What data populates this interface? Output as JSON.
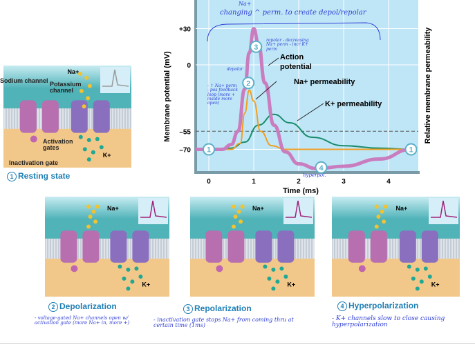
{
  "chart_data": {
    "type": "line",
    "xlabel": "Time (ms)",
    "ylabel": "Membrane potential (mV)",
    "ylabel_right": "Relative membrane permeability",
    "x_ticks": [
      "0",
      "1",
      "2",
      "3",
      "4"
    ],
    "y_ticks": [
      "+30",
      "0",
      "–55",
      "–70"
    ],
    "xlim": [
      -0.3,
      4.6
    ],
    "ylim": [
      -90,
      45
    ],
    "threshold_mV": -55,
    "grid": true,
    "series": [
      {
        "name": "Action potential",
        "color": "#c97dbf",
        "x": [
          -0.3,
          0.3,
          0.5,
          0.65,
          0.8,
          0.9,
          1.0,
          1.1,
          1.25,
          1.45,
          1.7,
          2.0,
          2.4,
          3.0,
          3.8,
          4.5
        ],
        "y": [
          -70,
          -70,
          -66,
          -55,
          -20,
          10,
          30,
          18,
          -15,
          -50,
          -72,
          -82,
          -86,
          -84,
          -78,
          -70
        ]
      },
      {
        "name": "Na+ permeability",
        "color": "#f0a020",
        "x": [
          -0.3,
          0.5,
          0.7,
          0.8,
          0.9,
          1.0,
          1.15,
          1.4,
          1.7,
          4.5
        ],
        "y": [
          0,
          0,
          0.05,
          0.3,
          0.49,
          0.4,
          0.15,
          0.03,
          0,
          0
        ]
      },
      {
        "name": "K+ permeability",
        "color": "#1a8c6a",
        "x": [
          -0.3,
          0.5,
          0.8,
          1.1,
          1.45,
          1.8,
          2.3,
          3.0,
          3.8,
          4.5
        ],
        "y": [
          0,
          0.01,
          0.06,
          0.2,
          0.29,
          0.22,
          0.1,
          0.03,
          0.01,
          0
        ]
      }
    ],
    "markers": [
      {
        "label": "1",
        "x": 0,
        "y": -70
      },
      {
        "label": "2",
        "x": 0.88,
        "y": -15
      },
      {
        "label": "3",
        "x": 1.05,
        "y": 15
      },
      {
        "label": "4",
        "x": 2.5,
        "y": -85
      },
      {
        "label": "1",
        "x": 4.5,
        "y": -70
      }
    ]
  },
  "panels": {
    "resting": {
      "caption": "Resting state",
      "num": "1",
      "sodium_channel": "Sodium channel",
      "potassium_channel": "Potassium channel",
      "na": "Na+",
      "k": "K+",
      "activation_gates": "Activation gates",
      "inactivation_gate": "Inactivation gate"
    },
    "depol": {
      "caption": "Depolarization",
      "num": "2",
      "na": "Na+",
      "k": "K+"
    },
    "repol": {
      "caption": "Repolarization",
      "num": "3",
      "na": "Na+",
      "k": "K+"
    },
    "hyper": {
      "caption": "Hyperpolarization",
      "num": "4",
      "na": "Na+",
      "k": "K+"
    }
  },
  "notes": {
    "top_na": "Na+",
    "top": "changing ^ perm. to create depol/repolar",
    "repolar": "repolar - decreasing Na+ perm - incr K+ perm",
    "depolar": "depolar",
    "depolar_detail": "- ↑ Na+ perm - pos feedback loop (more + inside more open)",
    "hyperpol": "hyperpol.",
    "depol_note": "- voltage-gated Na+ channels open w/ activation gate (more Na+ in, more +)",
    "repol_note": "- inactivation gate stops Na+ from coming thru at certain time (1ms)",
    "hyper_note": "- K+ channels slow to close causing hyperpolarization"
  },
  "colors": {
    "plot_bg": "#bfe6f7",
    "na_ion": "#f2c230",
    "k_ion": "#1fa894",
    "caption": "#1f7fb5",
    "note": "#2f3fd6"
  }
}
